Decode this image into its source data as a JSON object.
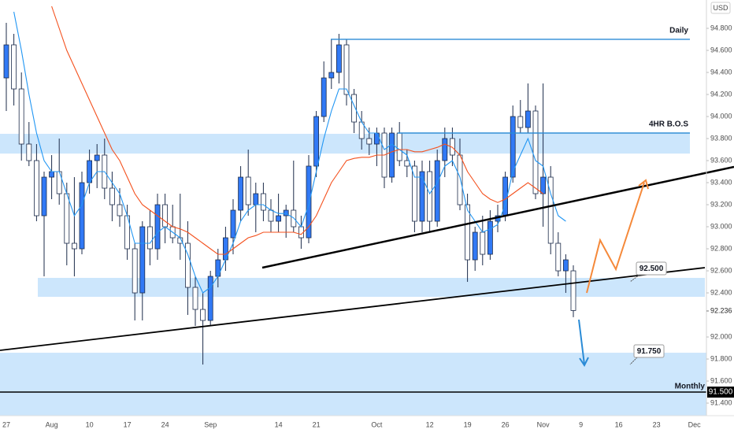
{
  "chart_data": {
    "type": "candlestick",
    "currency": "USD",
    "categories": [
      "27",
      null,
      null,
      null,
      null,
      null,
      "Aug",
      null,
      null,
      null,
      null,
      "10",
      null,
      null,
      null,
      null,
      "17",
      null,
      null,
      null,
      null,
      "24",
      null,
      null,
      null,
      null,
      null,
      "Sep",
      null,
      null,
      null,
      null,
      null,
      null,
      null,
      null,
      "14",
      null,
      null,
      null,
      null,
      "21",
      null,
      null,
      null,
      null,
      null,
      null,
      null,
      "Oct",
      null,
      null,
      null,
      null,
      null,
      null,
      "12",
      null,
      null,
      null,
      null,
      "19",
      null,
      null,
      null,
      null,
      "26",
      null,
      null,
      null,
      null,
      "Nov",
      null,
      null,
      null,
      null,
      "9",
      null,
      null,
      null,
      null,
      "16",
      null,
      null,
      null,
      null,
      "23",
      null,
      null,
      null,
      null,
      "Dec"
    ],
    "open": [
      94.35,
      94.65,
      94.25,
      93.75,
      93.6,
      93.1,
      93.45,
      93.5,
      93.3,
      92.85,
      92.8,
      93.4,
      93.6,
      93.65,
      93.35,
      93.2,
      93.1,
      92.8,
      92.4,
      93.0,
      92.8,
      93.2,
      93.0,
      92.9,
      92.85,
      92.45,
      92.25,
      92.15,
      92.55,
      92.7,
      92.9,
      93.15,
      93.45,
      93.2,
      93.3,
      93.15,
      93.05,
      93.1,
      93.15,
      93.0,
      92.9,
      93.55,
      94.0,
      94.35,
      94.4,
      94.65,
      94.2,
      93.95,
      93.8,
      93.75,
      93.85,
      93.45,
      93.85,
      93.6,
      93.55,
      93.05,
      93.5,
      93.05,
      93.6,
      93.8,
      93.65,
      93.2,
      92.7,
      92.95,
      92.75,
      93.05,
      93.1,
      93.45,
      94.0,
      93.9,
      94.05,
      93.3,
      93.45,
      92.85,
      92.6,
      92.6,
      null,
      null,
      null,
      null,
      null,
      null,
      null,
      null,
      null,
      null,
      null,
      null,
      null,
      null,
      null,
      null
    ],
    "high": [
      94.85,
      94.75,
      94.4,
      93.95,
      93.75,
      93.5,
      93.65,
      93.8,
      93.4,
      93.45,
      93.5,
      93.7,
      93.75,
      93.8,
      93.5,
      93.35,
      93.2,
      92.85,
      93.05,
      93.15,
      93.3,
      93.3,
      93.2,
      93.3,
      93.05,
      92.55,
      92.4,
      92.6,
      92.8,
      93.0,
      93.25,
      93.55,
      93.7,
      93.4,
      93.4,
      93.25,
      93.3,
      93.2,
      93.6,
      93.1,
      93.65,
      94.05,
      94.5,
      94.7,
      94.75,
      94.7,
      94.25,
      94.05,
      93.9,
      93.9,
      93.9,
      93.9,
      93.95,
      93.7,
      93.6,
      93.6,
      93.6,
      93.7,
      93.9,
      93.9,
      93.8,
      93.3,
      93.0,
      93.1,
      93.15,
      93.2,
      93.5,
      94.1,
      94.15,
      94.3,
      94.1,
      94.3,
      93.55,
      92.95,
      92.75,
      92.65,
      null,
      null,
      null,
      null,
      null,
      null,
      null,
      null,
      null,
      null,
      null,
      null,
      null,
      null,
      null,
      null
    ],
    "low": [
      94.05,
      94.1,
      93.6,
      93.55,
      93.05,
      92.55,
      93.25,
      93.2,
      92.65,
      92.55,
      92.75,
      93.3,
      93.35,
      93.25,
      93.05,
      93.0,
      92.7,
      92.15,
      92.15,
      92.65,
      92.7,
      92.85,
      92.85,
      92.7,
      92.2,
      92.1,
      91.75,
      92.1,
      92.45,
      92.6,
      92.75,
      93.05,
      93.1,
      92.95,
      93.05,
      92.95,
      92.95,
      92.9,
      92.95,
      92.8,
      92.85,
      93.45,
      93.95,
      94.25,
      94.3,
      94.1,
      93.85,
      93.7,
      93.65,
      93.55,
      93.35,
      93.4,
      93.55,
      93.45,
      92.95,
      92.95,
      92.95,
      93.0,
      93.45,
      93.55,
      93.15,
      92.5,
      92.6,
      92.65,
      92.7,
      92.95,
      93.05,
      93.4,
      93.85,
      93.85,
      93.25,
      93.0,
      92.75,
      92.55,
      92.4,
      92.18,
      null,
      null,
      null,
      null,
      null,
      null,
      null,
      null,
      null,
      null,
      null,
      null,
      null,
      null,
      null,
      null
    ],
    "close": [
      94.65,
      94.25,
      93.75,
      93.6,
      93.1,
      93.45,
      93.5,
      93.3,
      92.85,
      92.8,
      93.4,
      93.6,
      93.65,
      93.35,
      93.2,
      93.1,
      92.8,
      92.4,
      93.0,
      92.8,
      93.2,
      93.0,
      92.9,
      92.85,
      92.45,
      92.25,
      92.15,
      92.55,
      92.7,
      92.9,
      93.15,
      93.45,
      93.2,
      93.3,
      93.15,
      93.05,
      93.1,
      93.15,
      93.0,
      92.9,
      93.55,
      94.0,
      94.35,
      94.4,
      94.65,
      94.2,
      93.95,
      93.8,
      93.75,
      93.85,
      93.45,
      93.85,
      93.6,
      93.55,
      93.05,
      93.5,
      93.05,
      93.6,
      93.8,
      93.65,
      93.2,
      92.7,
      92.95,
      92.75,
      93.05,
      93.1,
      93.45,
      94.0,
      93.9,
      94.05,
      93.3,
      93.45,
      92.85,
      92.6,
      92.7,
      92.24,
      null,
      null,
      null,
      null,
      null,
      null,
      null,
      null,
      null,
      null,
      null,
      null,
      null,
      null,
      null,
      null
    ],
    "up_color": "#3179f5",
    "down_color": "#ffffff",
    "wick_color": "#1c2b4a",
    "series": [
      {
        "color": "#2196f3",
        "values": [
          null,
          94.95,
          94.6,
          94.2,
          93.85,
          93.6,
          93.5,
          93.5,
          93.3,
          93.1,
          93.2,
          93.4,
          93.5,
          93.5,
          93.4,
          93.3,
          93.1,
          92.85,
          92.85,
          92.85,
          92.95,
          93.0,
          92.95,
          92.9,
          92.75,
          92.55,
          92.4,
          92.45,
          92.55,
          92.7,
          92.85,
          93.05,
          93.15,
          93.2,
          93.2,
          93.15,
          93.12,
          93.12,
          93.08,
          93.0,
          93.2,
          93.5,
          93.8,
          94.05,
          94.25,
          94.25,
          94.1,
          93.95,
          93.85,
          93.85,
          93.7,
          93.75,
          93.7,
          93.65,
          93.45,
          93.45,
          93.3,
          93.4,
          93.55,
          93.6,
          93.45,
          93.15,
          93.05,
          92.95,
          92.98,
          93.02,
          93.2,
          93.5,
          93.65,
          93.8,
          93.6,
          93.55,
          93.3,
          93.1,
          93.05,
          null,
          null,
          null,
          null,
          null,
          null,
          null,
          null,
          null,
          null,
          null,
          null,
          null,
          null,
          null,
          null,
          null
        ]
      },
      {
        "color": "#f4511e",
        "values": [
          null,
          null,
          null,
          null,
          null,
          null,
          95.0,
          94.8,
          94.6,
          94.45,
          94.3,
          94.15,
          94.0,
          93.85,
          93.7,
          93.6,
          93.45,
          93.3,
          93.2,
          93.15,
          93.1,
          93.05,
          93.0,
          92.98,
          92.95,
          92.9,
          92.85,
          92.8,
          92.75,
          92.75,
          92.8,
          92.85,
          92.9,
          92.92,
          92.95,
          92.95,
          92.95,
          92.95,
          92.95,
          92.93,
          93.0,
          93.1,
          93.25,
          93.4,
          93.5,
          93.6,
          93.62,
          93.63,
          93.63,
          93.65,
          93.65,
          93.68,
          93.7,
          93.7,
          93.68,
          93.68,
          93.7,
          93.72,
          93.75,
          93.72,
          93.65,
          93.5,
          93.4,
          93.3,
          93.25,
          93.22,
          93.25,
          93.3,
          93.35,
          93.4,
          93.35,
          93.3,
          null,
          null,
          null,
          null,
          null,
          null,
          null,
          null,
          null,
          null,
          null,
          null,
          null,
          null,
          null,
          null,
          null,
          null,
          null,
          null
        ]
      }
    ],
    "ylim": [
      91.286,
      95.057
    ],
    "yticks": [
      {
        "value": 91.4,
        "label": "91.400"
      },
      {
        "value": 91.6,
        "label": "91.600"
      },
      {
        "value": 91.8,
        "label": "91.800"
      },
      {
        "value": 92.0,
        "label": "92.000"
      },
      {
        "value": 92.4,
        "label": "92.400"
      },
      {
        "value": 92.6,
        "label": "92.600"
      },
      {
        "value": 92.8,
        "label": "92.800"
      },
      {
        "value": 93.0,
        "label": "93.000"
      },
      {
        "value": 93.2,
        "label": "93.200"
      },
      {
        "value": 93.4,
        "label": "93.400"
      },
      {
        "value": 93.6,
        "label": "93.600"
      },
      {
        "value": 93.8,
        "label": "93.800"
      },
      {
        "value": 94.0,
        "label": "94.000"
      },
      {
        "value": 94.2,
        "label": "94.200"
      },
      {
        "value": 94.4,
        "label": "94.400"
      },
      {
        "value": 94.6,
        "label": "94.600"
      },
      {
        "value": 94.8,
        "label": "94.800"
      }
    ],
    "last_price": {
      "value": 92.236,
      "label": "92.236"
    },
    "zone_color": "#bbdefb",
    "zones": [
      {
        "from": 93.664,
        "to": 93.843
      },
      {
        "from": 92.364,
        "to": 92.536
      },
      {
        "from": 91.286,
        "to": 91.857
      }
    ],
    "levels": [
      {
        "label": "Daily",
        "value": 94.7,
        "color": "#2a8bd6"
      },
      {
        "label": "4HR B.O.S",
        "value": 93.85,
        "color": "#2a8bd6"
      },
      {
        "label": "Monthly",
        "value": 91.5,
        "color": "#000000",
        "axis_label": "91.500"
      }
    ],
    "callouts": [
      {
        "value": 92.5,
        "label": "92.500"
      },
      {
        "value": 91.75,
        "label": "91.750"
      }
    ]
  }
}
